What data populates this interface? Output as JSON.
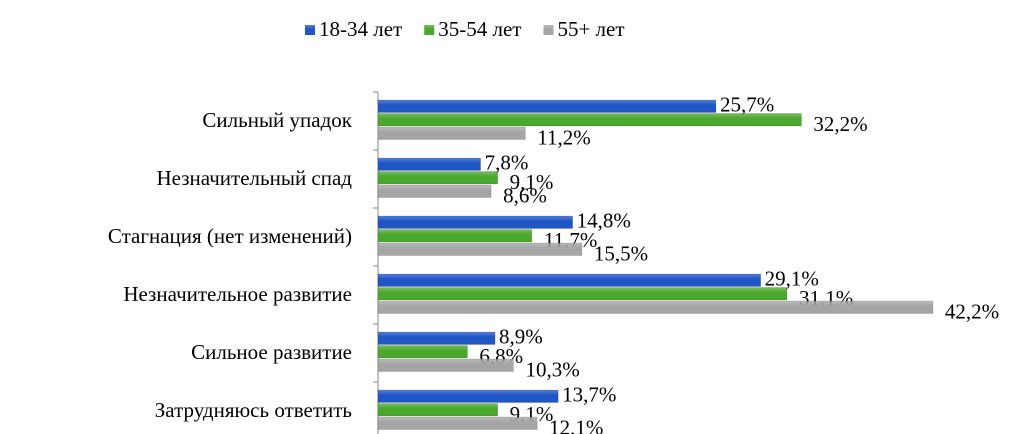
{
  "chart_data": {
    "type": "hbar",
    "categories": [
      "Сильный упадок",
      "Незначительный спад",
      "Стагнация (нет изменений)",
      "Незначительное развитие",
      "Сильное развитие",
      "Затрудняюсь ответить"
    ],
    "series": [
      {
        "name": "18-34 лет",
        "color": "#1f56c6",
        "values": [
          25.7,
          7.8,
          14.8,
          29.1,
          8.9,
          13.7
        ],
        "value_labels": [
          "25,7%",
          "7,8%",
          "14,8%",
          "29,1%",
          "8,9%",
          "13,7%"
        ]
      },
      {
        "name": "35-54 лет",
        "color": "#4aa82c",
        "values": [
          32.2,
          9.1,
          11.7,
          31.1,
          6.8,
          9.1
        ],
        "value_labels": [
          "32,2%",
          "9,1%",
          "11,7%",
          "31,1%",
          "6,8%",
          "9,1%"
        ]
      },
      {
        "name": "55+ лет",
        "color": "#a5a5a5",
        "values": [
          11.2,
          8.6,
          15.5,
          42.2,
          10.3,
          12.1
        ],
        "value_labels": [
          "11,2%",
          "8,6%",
          "15,5%",
          "42,2%",
          "10,3%",
          "12,1%"
        ]
      }
    ],
    "xlim": [
      0,
      45
    ],
    "legend": "top"
  }
}
